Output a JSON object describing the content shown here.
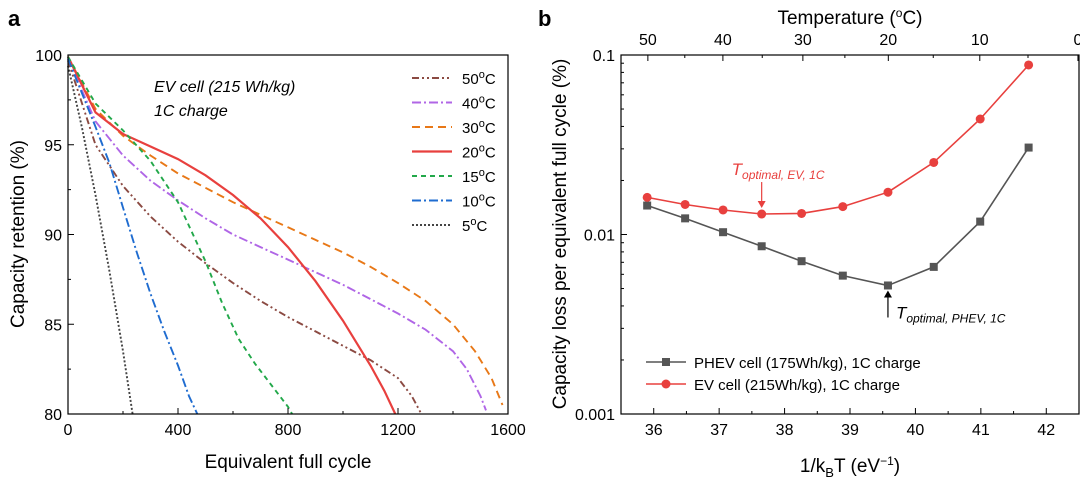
{
  "chart_data": [
    {
      "panel": "a",
      "type": "line",
      "xlabel": "Equivalent full cycle",
      "ylabel": "Capacity retention (%)",
      "xlim": [
        0,
        1600
      ],
      "ylim": [
        80,
        100
      ],
      "xticks": [
        "0",
        "400",
        "800",
        "1200",
        "1600"
      ],
      "yticks": [
        "80",
        "85",
        "90",
        "95",
        "100"
      ],
      "annotation": [
        "EV cell (215 Wh/kg)",
        "1C charge"
      ],
      "legend_position": "top-right",
      "series": [
        {
          "name": "50°C",
          "label_num": "50",
          "color": "#8B4A42",
          "dash": "7 3 2 3 2 3",
          "x": [
            0,
            100,
            200,
            300,
            400,
            500,
            600,
            700,
            800,
            900,
            1000,
            1100,
            1200,
            1250,
            1285
          ],
          "y": [
            99.7,
            95.0,
            92.7,
            91.0,
            89.6,
            88.4,
            87.3,
            86.3,
            85.4,
            84.6,
            83.8,
            83.0,
            82.0,
            81.0,
            80.0
          ]
        },
        {
          "name": "40°C",
          "label_num": "40",
          "color": "#B066E6",
          "dash": "9 3 2 3",
          "x": [
            0,
            100,
            200,
            300,
            400,
            500,
            600,
            700,
            800,
            900,
            1000,
            1100,
            1200,
            1300,
            1400,
            1450,
            1500,
            1520
          ],
          "y": [
            99.8,
            96.3,
            94.4,
            93.0,
            91.9,
            90.9,
            90.0,
            89.3,
            88.6,
            87.9,
            87.2,
            86.4,
            85.6,
            84.7,
            83.5,
            82.5,
            81.0,
            80.2
          ]
        },
        {
          "name": "30°C",
          "label_num": "30",
          "color": "#E87817",
          "dash": "8 5",
          "x": [
            0,
            100,
            200,
            300,
            400,
            500,
            600,
            700,
            800,
            900,
            1000,
            1100,
            1200,
            1300,
            1400,
            1480,
            1540,
            1580
          ],
          "y": [
            99.9,
            97.0,
            95.5,
            94.4,
            93.4,
            92.6,
            91.8,
            91.1,
            90.4,
            89.7,
            89.0,
            88.2,
            87.3,
            86.3,
            85.0,
            83.5,
            82.0,
            80.5
          ]
        },
        {
          "name": "20°C",
          "label_num": "20",
          "color": "#E8403E",
          "dash": "",
          "x": [
            0,
            100,
            200,
            300,
            400,
            500,
            600,
            700,
            800,
            900,
            1000,
            1100,
            1150,
            1190
          ],
          "y": [
            99.9,
            96.8,
            95.6,
            94.9,
            94.2,
            93.3,
            92.2,
            90.9,
            89.3,
            87.4,
            85.2,
            82.7,
            81.3,
            80.0
          ]
        },
        {
          "name": "15°C",
          "label_num": "15",
          "color": "#22A84A",
          "dash": "5 4",
          "x": [
            0,
            100,
            200,
            300,
            400,
            500,
            560,
            620,
            680,
            730,
            770,
            800,
            815
          ],
          "y": [
            99.9,
            97.3,
            95.8,
            94.1,
            91.8,
            88.5,
            86.2,
            84.2,
            82.8,
            81.8,
            81.0,
            80.4,
            80.0
          ]
        },
        {
          "name": "10°C",
          "label_num": "10",
          "color": "#1F6CD0",
          "dash": "9 3 2 3",
          "x": [
            0,
            100,
            150,
            200,
            250,
            300,
            350,
            400,
            440,
            470
          ],
          "y": [
            99.8,
            96.0,
            94.0,
            91.5,
            89.0,
            86.7,
            84.6,
            82.7,
            81.0,
            80.0
          ]
        },
        {
          "name": "5°C",
          "label_num": "5",
          "color": "#444444",
          "dash": "2 2",
          "x": [
            0,
            50,
            100,
            150,
            200,
            235
          ],
          "y": [
            99.4,
            96.0,
            92.2,
            88.0,
            83.5,
            80.0
          ]
        }
      ]
    },
    {
      "panel": "b",
      "type": "line",
      "xlabel": "1/k",
      "xlabel_sub": "B",
      "xlabel_tail": "T (eV",
      "xlabel_sup": "−1",
      "xlabel_close": ")",
      "ylabel": "Capacity loss per equivalent full cycle (%)",
      "top_axis_label": "Temperature (°C)",
      "top_axis_label_pre": "Temperature (",
      "top_axis_label_sup": "o",
      "top_axis_label_post": "C)",
      "xlim": [
        35.5,
        42.5
      ],
      "ylim": [
        0.001,
        0.1
      ],
      "y_scale": "log",
      "xticks": [
        "36",
        "37",
        "38",
        "39",
        "40",
        "41",
        "42"
      ],
      "yticks": [
        "0.001",
        "0.01",
        "0.1"
      ],
      "top_ticks": [
        "50",
        "40",
        "30",
        "20",
        "10",
        "0"
      ],
      "top_ticks_minor": [
        "45",
        "35",
        "25",
        "15",
        "5"
      ],
      "legend_position": "bottom-left",
      "series": [
        {
          "name": "PHEV cell (175Wh/kg), 1C charge",
          "color": "#555555",
          "marker": "square",
          "x": [
            35.9,
            36.48,
            37.06,
            37.65,
            38.26,
            38.89,
            39.58,
            40.28,
            40.99,
            41.73
          ],
          "y": [
            0.0145,
            0.0123,
            0.0103,
            0.0086,
            0.0071,
            0.0059,
            0.0052,
            0.0066,
            0.0118,
            0.0305
          ]
        },
        {
          "name": "EV cell (215Wh/kg), 1C charge",
          "color": "#E8403E",
          "marker": "circle",
          "x": [
            35.9,
            36.48,
            37.06,
            37.65,
            38.26,
            38.89,
            39.58,
            40.28,
            40.99,
            41.73
          ],
          "y": [
            0.0161,
            0.0147,
            0.0137,
            0.013,
            0.0131,
            0.0143,
            0.0172,
            0.0252,
            0.044,
            0.088
          ]
        }
      ],
      "annotations": [
        {
          "main": "T",
          "sub": "optimal, EV, 1C",
          "color": "#E8403E",
          "x": 37.65,
          "y": 0.013
        },
        {
          "main": "T",
          "sub": "optimal, PHEV, 1C",
          "color": "#000000",
          "x": 39.58,
          "y": 0.0052
        }
      ]
    }
  ]
}
